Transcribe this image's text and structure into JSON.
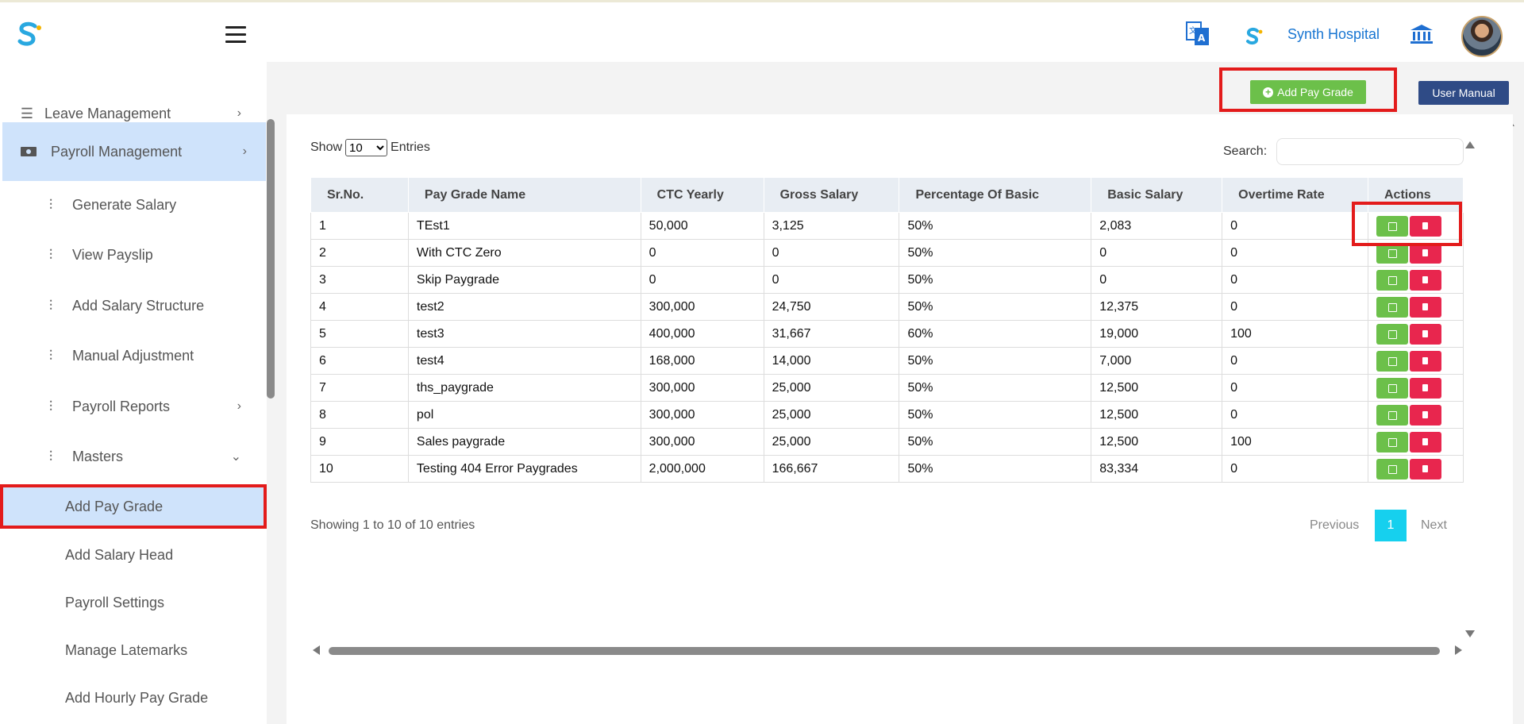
{
  "header": {
    "hospital_name": "Synth Hospital",
    "icons": [
      "logo-icon",
      "menu-icon",
      "translate-icon",
      "hospital-logo-icon",
      "bank-icon",
      "avatar"
    ]
  },
  "sidebar": {
    "items": [
      {
        "label": "Leave Management",
        "icon": "list-icon",
        "chevron": "›"
      },
      {
        "label": "Payroll Management",
        "icon": "money-icon",
        "chevron": "›"
      },
      {
        "label": "Generate Salary",
        "icon": "sliders-icon"
      },
      {
        "label": "View Payslip",
        "icon": "sliders-icon"
      },
      {
        "label": "Add Salary Structure",
        "icon": "sliders-icon"
      },
      {
        "label": "Manual Adjustment",
        "icon": "sliders-icon"
      },
      {
        "label": "Payroll Reports",
        "icon": "sliders-icon",
        "chevron": "›"
      },
      {
        "label": "Masters",
        "icon": "sliders-icon",
        "chevron": "⌄"
      },
      {
        "label": "Add Pay Grade"
      },
      {
        "label": "Add Salary Head"
      },
      {
        "label": "Payroll Settings"
      },
      {
        "label": "Manage Latemarks"
      },
      {
        "label": "Add Hourly Pay Grade"
      }
    ]
  },
  "toolbar": {
    "add_pay_grade": "Add Pay Grade",
    "user_manual": "User Manual"
  },
  "table_controls": {
    "show_label": "Show",
    "entries_value": "10",
    "entries_label": "Entries",
    "search_label": "Search:"
  },
  "table": {
    "headers": [
      "Sr.No.",
      "Pay Grade Name",
      "CTC Yearly",
      "Gross Salary",
      "Percentage Of Basic",
      "Basic Salary",
      "Overtime Rate",
      "Actions"
    ],
    "rows": [
      [
        "1",
        "TEst1",
        "50,000",
        "3,125",
        "50%",
        "2,083",
        "0"
      ],
      [
        "2",
        "With CTC Zero",
        "0",
        "0",
        "50%",
        "0",
        "0"
      ],
      [
        "3",
        "Skip Paygrade",
        "0",
        "0",
        "50%",
        "0",
        "0"
      ],
      [
        "4",
        "test2",
        "300,000",
        "24,750",
        "50%",
        "12,375",
        "0"
      ],
      [
        "5",
        "test3",
        "400,000",
        "31,667",
        "60%",
        "19,000",
        "100"
      ],
      [
        "6",
        "test4",
        "168,000",
        "14,000",
        "50%",
        "7,000",
        "0"
      ],
      [
        "7",
        "ths_paygrade",
        "300,000",
        "25,000",
        "50%",
        "12,500",
        "0"
      ],
      [
        "8",
        "pol",
        "300,000",
        "25,000",
        "50%",
        "12,500",
        "0"
      ],
      [
        "9",
        "Sales paygrade",
        "300,000",
        "25,000",
        "50%",
        "12,500",
        "100"
      ],
      [
        "10",
        "Testing 404 Error Paygrades",
        "2,000,000",
        "166,667",
        "50%",
        "83,334",
        "0"
      ]
    ]
  },
  "footer": {
    "showing": "Showing 1 to 10 of 10 entries",
    "previous": "Previous",
    "current_page": "1",
    "next": "Next"
  },
  "colors": {
    "brand_blue": "#1976d2",
    "active_bg": "#cfe3fb",
    "green": "#6cc04a",
    "red": "#e8264e",
    "navy": "#2f4b86",
    "highlight": "#e31b1b",
    "page_active": "#16d0ee"
  }
}
